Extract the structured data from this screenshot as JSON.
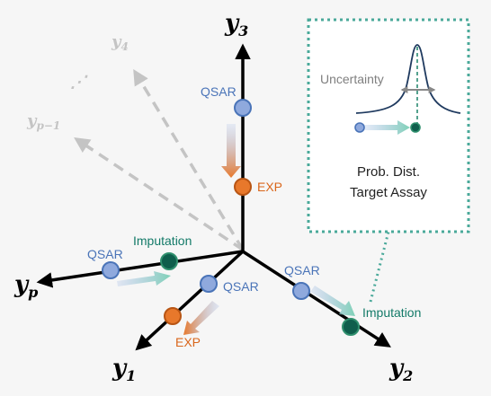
{
  "axes": {
    "y3": {
      "base": "y",
      "sub": "3"
    },
    "y1": {
      "base": "y",
      "sub": "1"
    },
    "y2": {
      "base": "y",
      "sub": "2"
    },
    "yp": {
      "base": "y",
      "sub": "p"
    },
    "y4": {
      "base": "y",
      "sub": "4"
    },
    "yp1": {
      "base": "y",
      "sub": "p−1"
    },
    "ellipsis": "⋰"
  },
  "labels": {
    "qsar": "QSAR",
    "exp": "EXP",
    "imputation": "Imputation"
  },
  "inset": {
    "uncertainty": "Uncertainty",
    "line1": "Prob. Dist.",
    "line2": "Target Assay"
  },
  "colors": {
    "qsar_node": "#8fa9dd",
    "qsar_stroke": "#4a74b8",
    "exp_node": "#e8782b",
    "exp_stroke": "#b85514",
    "imputation_node": "#0f5e4c",
    "imputation_stroke": "#2f8f6d",
    "teal_arrow": "#7fd1b7",
    "inset_border": "#4aa99a",
    "faded_axis": "#c4c4c4"
  }
}
